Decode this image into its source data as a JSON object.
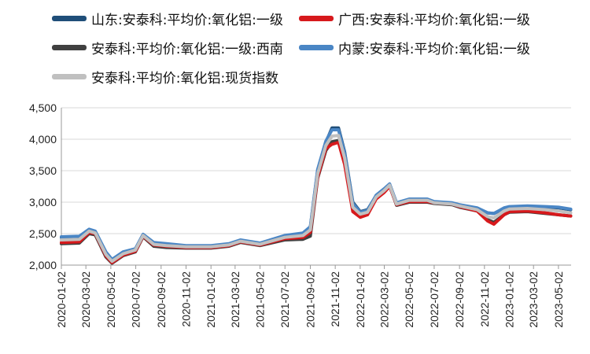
{
  "chart_data": {
    "type": "line",
    "title": "",
    "xlabel": "",
    "ylabel": "",
    "ylim": [
      2000,
      4500
    ],
    "yticks": [
      "2,000",
      "2,500",
      "3,000",
      "3,500",
      "4,000",
      "4,500"
    ],
    "ytick_values": [
      2000,
      2500,
      3000,
      3500,
      4000,
      4500
    ],
    "xticks": [
      "2020-01-02",
      "2020-03-02",
      "2020-05-02",
      "2020-07-02",
      "2020-09-02",
      "2020-11-02",
      "2021-01-02",
      "2021-03-02",
      "2021-05-02",
      "2021-07-02",
      "2021-09-02",
      "2021-11-02",
      "2022-01-02",
      "2022-03-02",
      "2022-05-02",
      "2022-07-02",
      "2022-09-02",
      "2022-11-02",
      "2023-01-02",
      "2023-03-02",
      "2023-05-02"
    ],
    "grid": true,
    "legend_position": "top",
    "series": [
      {
        "name": "山东:安泰科:平均价:氧化铝:一级",
        "color": "#1f4e79",
        "x": [
          "2020-01-02",
          "2020-02-15",
          "2020-03-10",
          "2020-03-25",
          "2020-04-20",
          "2020-05-05",
          "2020-06-01",
          "2020-07-01",
          "2020-07-20",
          "2020-08-15",
          "2020-09-15",
          "2020-11-02",
          "2021-01-02",
          "2021-02-15",
          "2021-03-15",
          "2021-05-02",
          "2021-07-01",
          "2021-08-15",
          "2021-09-02",
          "2021-09-20",
          "2021-10-10",
          "2021-10-25",
          "2021-11-10",
          "2021-11-25",
          "2021-12-15",
          "2022-01-02",
          "2022-01-20",
          "2022-02-10",
          "2022-03-01",
          "2022-03-15",
          "2022-04-01",
          "2022-05-02",
          "2022-06-15",
          "2022-07-02",
          "2022-08-15",
          "2022-09-02",
          "2022-10-15",
          "2022-11-10",
          "2022-11-25",
          "2022-12-20",
          "2023-01-02",
          "2023-02-15",
          "2023-04-01",
          "2023-05-02",
          "2023-06-01"
        ],
        "values": [
          2440,
          2450,
          2560,
          2530,
          2200,
          2080,
          2200,
          2250,
          2480,
          2350,
          2330,
          2300,
          2300,
          2330,
          2390,
          2340,
          2460,
          2500,
          2600,
          3500,
          3950,
          4180,
          4180,
          3800,
          3000,
          2850,
          2880,
          3100,
          3200,
          3280,
          2980,
          3040,
          3040,
          3000,
          2980,
          2950,
          2900,
          2830,
          2820,
          2900,
          2920,
          2930,
          2920,
          2910,
          2880
        ]
      },
      {
        "name": "广西:安泰科:平均价:氧化铝:一级",
        "color": "#d7191c",
        "x": [
          "2020-01-02",
          "2020-02-15",
          "2020-03-10",
          "2020-03-25",
          "2020-04-20",
          "2020-05-05",
          "2020-06-01",
          "2020-07-01",
          "2020-07-20",
          "2020-08-15",
          "2020-09-15",
          "2020-11-02",
          "2021-01-02",
          "2021-02-15",
          "2021-03-15",
          "2021-05-02",
          "2021-07-01",
          "2021-08-15",
          "2021-09-02",
          "2021-09-20",
          "2021-10-10",
          "2021-10-25",
          "2021-11-10",
          "2021-11-25",
          "2021-12-15",
          "2022-01-02",
          "2022-01-20",
          "2022-02-10",
          "2022-03-01",
          "2022-03-15",
          "2022-04-01",
          "2022-05-02",
          "2022-06-15",
          "2022-07-02",
          "2022-08-15",
          "2022-09-02",
          "2022-10-15",
          "2022-11-10",
          "2022-11-25",
          "2022-12-20",
          "2023-01-02",
          "2023-02-15",
          "2023-04-01",
          "2023-05-02",
          "2023-06-01"
        ],
        "values": [
          2360,
          2370,
          2520,
          2500,
          2150,
          2040,
          2160,
          2220,
          2460,
          2320,
          2300,
          2280,
          2280,
          2310,
          2370,
          2320,
          2420,
          2440,
          2520,
          3400,
          3850,
          3920,
          3950,
          3600,
          2850,
          2760,
          2800,
          3050,
          3150,
          3250,
          2960,
          3010,
          3010,
          2990,
          2970,
          2930,
          2860,
          2700,
          2650,
          2800,
          2850,
          2860,
          2830,
          2800,
          2780
        ]
      },
      {
        "name": "安泰科:平均价:氧化铝:一级:西南",
        "color": "#404040",
        "x": [
          "2020-01-02",
          "2020-02-15",
          "2020-03-10",
          "2020-03-25",
          "2020-04-20",
          "2020-05-05",
          "2020-06-01",
          "2020-07-01",
          "2020-07-20",
          "2020-08-15",
          "2020-09-15",
          "2020-11-02",
          "2021-01-02",
          "2021-02-15",
          "2021-03-15",
          "2021-05-02",
          "2021-07-01",
          "2021-08-15",
          "2021-09-02",
          "2021-09-20",
          "2021-10-10",
          "2021-10-25",
          "2021-11-10",
          "2021-11-25",
          "2021-12-15",
          "2022-01-02",
          "2022-01-20",
          "2022-02-10",
          "2022-03-01",
          "2022-03-15",
          "2022-04-01",
          "2022-05-02",
          "2022-06-15",
          "2022-07-02",
          "2022-08-15",
          "2022-09-02",
          "2022-10-15",
          "2022-11-10",
          "2022-11-25",
          "2022-12-20",
          "2023-01-02",
          "2023-02-15",
          "2023-04-01",
          "2023-05-02",
          "2023-06-01"
        ],
        "values": [
          2340,
          2350,
          2500,
          2480,
          2130,
          2030,
          2150,
          2210,
          2450,
          2300,
          2280,
          2270,
          2270,
          2300,
          2360,
          2310,
          2400,
          2410,
          2460,
          3380,
          3820,
          3960,
          3980,
          3650,
          2870,
          2780,
          2810,
          3060,
          3160,
          3260,
          2950,
          3000,
          3000,
          2980,
          2960,
          2920,
          2860,
          2720,
          2680,
          2800,
          2840,
          2850,
          2820,
          2800,
          2780
        ]
      },
      {
        "name": "内蒙:安泰科:平均价:氧化铝:一级",
        "color": "#4a86c5",
        "x": [
          "2020-01-02",
          "2020-02-15",
          "2020-03-10",
          "2020-03-25",
          "2020-04-20",
          "2020-05-05",
          "2020-06-01",
          "2020-07-01",
          "2020-07-20",
          "2020-08-15",
          "2020-09-15",
          "2020-11-02",
          "2021-01-02",
          "2021-02-15",
          "2021-03-15",
          "2021-05-02",
          "2021-07-01",
          "2021-08-15",
          "2021-09-02",
          "2021-09-20",
          "2021-10-10",
          "2021-10-25",
          "2021-11-10",
          "2021-11-25",
          "2021-12-15",
          "2022-01-02",
          "2022-01-20",
          "2022-02-10",
          "2022-03-01",
          "2022-03-15",
          "2022-04-01",
          "2022-05-02",
          "2022-06-15",
          "2022-07-02",
          "2022-08-15",
          "2022-09-02",
          "2022-10-15",
          "2022-11-10",
          "2022-11-25",
          "2022-12-20",
          "2023-01-02",
          "2023-02-15",
          "2023-04-01",
          "2023-05-02",
          "2023-06-01"
        ],
        "values": [
          2450,
          2460,
          2570,
          2540,
          2210,
          2090,
          2210,
          2260,
          2490,
          2360,
          2340,
          2310,
          2310,
          2340,
          2400,
          2350,
          2470,
          2510,
          2610,
          3520,
          3970,
          4150,
          4150,
          3780,
          2980,
          2840,
          2870,
          3110,
          3210,
          3290,
          2990,
          3050,
          3050,
          3010,
          2990,
          2960,
          2910,
          2830,
          2820,
          2910,
          2930,
          2940,
          2930,
          2920,
          2890
        ]
      },
      {
        "name": "安泰科:平均价:氧化铝:现货指数",
        "color": "#c0c0c0",
        "x": [
          "2020-01-02",
          "2020-02-15",
          "2020-03-10",
          "2020-03-25",
          "2020-04-20",
          "2020-05-05",
          "2020-06-01",
          "2020-07-01",
          "2020-07-20",
          "2020-08-15",
          "2020-09-15",
          "2020-11-02",
          "2021-01-02",
          "2021-02-15",
          "2021-03-15",
          "2021-05-02",
          "2021-07-01",
          "2021-08-15",
          "2021-09-02",
          "2021-09-20",
          "2021-10-10",
          "2021-10-25",
          "2021-11-10",
          "2021-11-25",
          "2021-12-15",
          "2022-01-02",
          "2022-01-20",
          "2022-02-10",
          "2022-03-01",
          "2022-03-15",
          "2022-04-01",
          "2022-05-02",
          "2022-06-15",
          "2022-07-02",
          "2022-08-15",
          "2022-09-02",
          "2022-10-15",
          "2022-11-10",
          "2022-11-25",
          "2022-12-20",
          "2023-01-02",
          "2023-02-15",
          "2023-04-01",
          "2023-05-02",
          "2023-06-01"
        ],
        "values": [
          2400,
          2410,
          2540,
          2510,
          2170,
          2060,
          2180,
          2240,
          2470,
          2330,
          2310,
          2290,
          2290,
          2320,
          2380,
          2330,
          2440,
          2470,
          2560,
          3450,
          3900,
          4050,
          4060,
          3700,
          2920,
          2810,
          2840,
          3080,
          3180,
          3270,
          2970,
          3030,
          3030,
          2990,
          2970,
          2940,
          2880,
          2770,
          2750,
          2860,
          2890,
          2900,
          2880,
          2860,
          2830
        ]
      }
    ]
  }
}
